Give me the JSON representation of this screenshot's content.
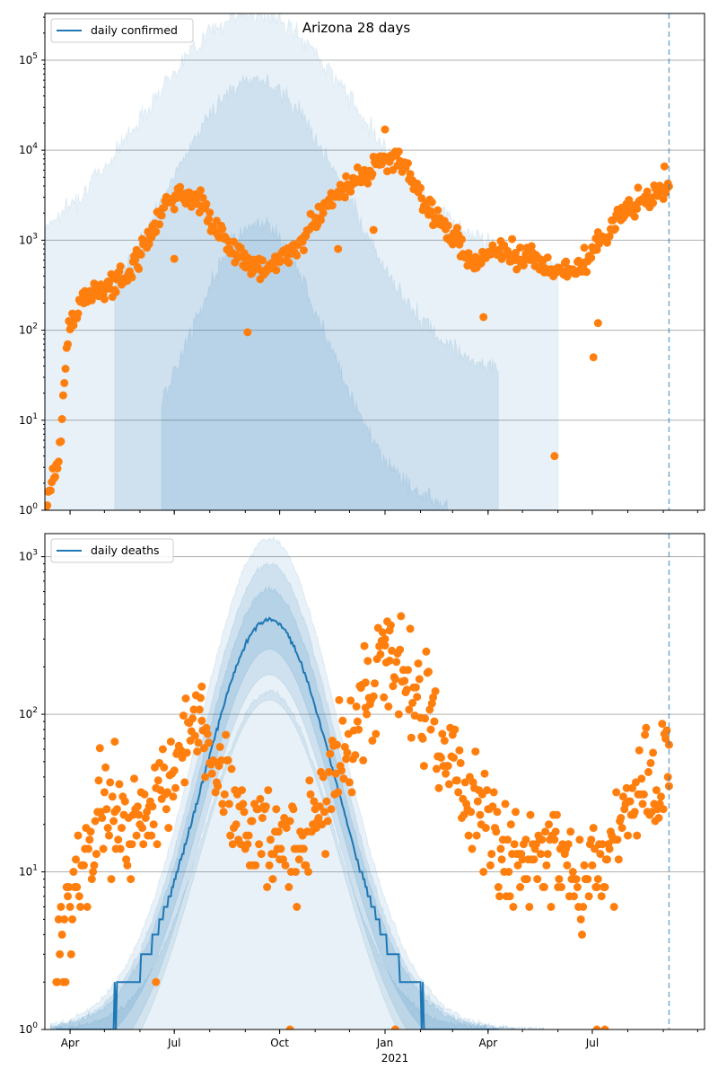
{
  "figure_title": "Arizona 28 days",
  "colors": {
    "band": "#1f77b4",
    "median_line": "#1f77b4",
    "observed": "#ff7f0e",
    "marker_line": "#1f77b4",
    "grid": "#b0b0b0"
  },
  "x_axis": {
    "tick_labels": [
      "Apr",
      "Jul",
      "Oct",
      "Jan",
      "Apr",
      "Jul"
    ],
    "tick_dates": [
      "2020-04-01",
      "2020-07-01",
      "2020-10-01",
      "2021-01-01",
      "2021-04-01",
      "2021-07-01"
    ],
    "year_label": "2021",
    "range": [
      "2020-03-10",
      "2021-10-07"
    ],
    "marker_date": "2021-09-06"
  },
  "chart_data": [
    {
      "type": "scatter",
      "name": "cases",
      "legend": "daily confirmed",
      "legend_position": "top-left",
      "y_scale": "log",
      "ylim": [
        1,
        330000
      ],
      "y_ticks": [
        1,
        10,
        100,
        1000,
        10000,
        100000
      ],
      "y_tick_labels": [
        {
          "base": "10",
          "exp": "0"
        },
        {
          "base": "10",
          "exp": "1"
        },
        {
          "base": "10",
          "exp": "2"
        },
        {
          "base": "10",
          "exp": "3"
        },
        {
          "base": "10",
          "exp": "4"
        },
        {
          "base": "10",
          "exp": "5"
        }
      ],
      "grid": "horizontal",
      "bands": [
        {
          "peak_date": "2020-09-07",
          "peak": 330000,
          "width_days": 95,
          "floor": 500,
          "floor_width_days": 140,
          "start": "2020-03-10",
          "end": "2021-06-01",
          "opacity": 0.1
        },
        {
          "peak_date": "2020-09-10",
          "peak": 60000,
          "width_days": 80,
          "floor": 30,
          "floor_width_days": 140,
          "start": "2020-05-10",
          "end": "2021-04-10",
          "opacity": 0.12
        },
        {
          "peak_date": "2020-09-12",
          "peak": 1500,
          "width_days": 60,
          "floor": 1,
          "floor_width_days": 130,
          "start": "2020-06-20",
          "end": "2021-02-25",
          "opacity": 0.13
        }
      ],
      "observed_trend": [
        [
          "2020-03-10",
          1
        ],
        [
          "2020-03-16",
          2
        ],
        [
          "2020-03-20",
          3
        ],
        [
          "2020-03-24",
          6
        ],
        [
          "2020-03-27",
          30
        ],
        [
          "2020-03-31",
          110
        ],
        [
          "2020-04-10",
          200
        ],
        [
          "2020-04-25",
          280
        ],
        [
          "2020-05-10",
          330
        ],
        [
          "2020-05-25",
          450
        ],
        [
          "2020-06-05",
          900
        ],
        [
          "2020-06-20",
          2000
        ],
        [
          "2020-07-05",
          3500
        ],
        [
          "2020-07-15",
          3200
        ],
        [
          "2020-07-25",
          2500
        ],
        [
          "2020-08-05",
          1500
        ],
        [
          "2020-08-20",
          800
        ],
        [
          "2020-09-05",
          550
        ],
        [
          "2020-09-20",
          450
        ],
        [
          "2020-10-05",
          700
        ],
        [
          "2020-10-20",
          1000
        ],
        [
          "2020-11-05",
          2000
        ],
        [
          "2020-11-20",
          3300
        ],
        [
          "2020-12-05",
          4500
        ],
        [
          "2020-12-20",
          6000
        ],
        [
          "2021-01-05",
          8000
        ],
        [
          "2021-01-15",
          7500
        ],
        [
          "2021-01-25",
          5000
        ],
        [
          "2021-02-05",
          2500
        ],
        [
          "2021-02-20",
          1500
        ],
        [
          "2021-03-05",
          900
        ],
        [
          "2021-03-20",
          600
        ],
        [
          "2021-04-05",
          700
        ],
        [
          "2021-04-20",
          700
        ],
        [
          "2021-05-05",
          700
        ],
        [
          "2021-05-20",
          500
        ],
        [
          "2021-06-05",
          450
        ],
        [
          "2021-06-20",
          500
        ],
        [
          "2021-07-05",
          900
        ],
        [
          "2021-07-20",
          1500
        ],
        [
          "2021-08-05",
          2500
        ],
        [
          "2021-08-20",
          3000
        ],
        [
          "2021-09-06",
          4000
        ]
      ],
      "observed_outliers": [
        [
          "2020-07-01",
          620
        ],
        [
          "2020-09-03",
          95
        ],
        [
          "2020-11-21",
          800
        ],
        [
          "2020-12-22",
          1300
        ],
        [
          "2021-03-28",
          140
        ],
        [
          "2021-05-29",
          4
        ],
        [
          "2021-07-02",
          50
        ],
        [
          "2021-07-06",
          120
        ],
        [
          "2021-09-02",
          6600
        ],
        [
          "2021-01-01",
          17000
        ]
      ]
    },
    {
      "type": "scatter",
      "name": "deaths",
      "legend": "daily deaths",
      "legend_position": "top-left",
      "y_scale": "log",
      "ylim": [
        1,
        1400
      ],
      "y_ticks": [
        1,
        10,
        100,
        1000
      ],
      "y_tick_labels": [
        {
          "base": "10",
          "exp": "0"
        },
        {
          "base": "10",
          "exp": "1"
        },
        {
          "base": "10",
          "exp": "2"
        },
        {
          "base": "10",
          "exp": "3"
        }
      ],
      "grid": "horizontal",
      "median": {
        "peak_date": "2020-09-22",
        "peak": 400,
        "width_days": 58,
        "start": "2020-03-20",
        "end": "2021-04-10"
      },
      "bands": [
        {
          "peak_date": "2020-09-22",
          "peak": 1300,
          "width_days": 62,
          "opacity": 0.1
        },
        {
          "peak_date": "2020-09-22",
          "peak": 900,
          "width_days": 60,
          "opacity": 0.12
        },
        {
          "peak_date": "2020-09-22",
          "peak": 620,
          "width_days": 59,
          "opacity": 0.14
        },
        {
          "peak_date": "2020-09-22",
          "peak": 140,
          "width_days": 55,
          "opacity": 0.1
        }
      ],
      "observed_trend": [
        [
          "2020-03-20",
          2
        ],
        [
          "2020-04-01",
          7
        ],
        [
          "2020-04-15",
          12
        ],
        [
          "2020-05-01",
          25
        ],
        [
          "2020-05-15",
          22
        ],
        [
          "2020-06-01",
          18
        ],
        [
          "2020-06-15",
          25
        ],
        [
          "2020-07-01",
          45
        ],
        [
          "2020-07-15",
          90
        ],
        [
          "2020-08-01",
          60
        ],
        [
          "2020-08-15",
          35
        ],
        [
          "2020-09-01",
          22
        ],
        [
          "2020-09-15",
          18
        ],
        [
          "2020-10-01",
          14
        ],
        [
          "2020-10-15",
          12
        ],
        [
          "2020-11-01",
          20
        ],
        [
          "2020-11-15",
          35
        ],
        [
          "2020-12-01",
          60
        ],
        [
          "2020-12-15",
          120
        ],
        [
          "2021-01-01",
          180
        ],
        [
          "2021-01-15",
          200
        ],
        [
          "2021-02-01",
          120
        ],
        [
          "2021-02-15",
          80
        ],
        [
          "2021-03-01",
          50
        ],
        [
          "2021-03-15",
          30
        ],
        [
          "2021-04-01",
          20
        ],
        [
          "2021-04-15",
          12
        ],
        [
          "2021-05-01",
          15
        ],
        [
          "2021-05-15",
          14
        ],
        [
          "2021-06-01",
          12
        ],
        [
          "2021-06-15",
          11
        ],
        [
          "2021-07-01",
          10
        ],
        [
          "2021-07-15",
          12
        ],
        [
          "2021-08-01",
          18
        ],
        [
          "2021-08-15",
          30
        ],
        [
          "2021-09-06",
          45
        ]
      ],
      "observed_outliers": [
        [
          "2020-05-10",
          67
        ],
        [
          "2020-07-25",
          150
        ],
        [
          "2020-12-15",
          110
        ],
        [
          "2021-01-05",
          340
        ],
        [
          "2021-01-01",
          300
        ],
        [
          "2020-10-10",
          1
        ],
        [
          "2021-01-10",
          1
        ],
        [
          "2020-06-15",
          2
        ],
        [
          "2021-07-05",
          1
        ],
        [
          "2021-07-12",
          1
        ],
        [
          "2021-09-06",
          64
        ]
      ]
    }
  ]
}
